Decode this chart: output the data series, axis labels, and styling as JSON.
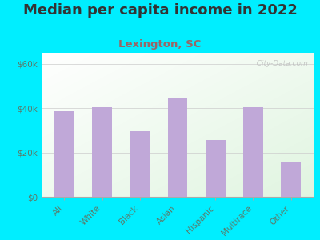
{
  "title": "Median per capita income in 2022",
  "subtitle": "Lexington, SC",
  "categories": [
    "All",
    "White",
    "Black",
    "Asian",
    "Hispanic",
    "Multirace",
    "Other"
  ],
  "values": [
    38500,
    40500,
    29500,
    44500,
    25500,
    40500,
    15500
  ],
  "bar_color": "#c0a8d8",
  "background_outer": "#00eeff",
  "title_color": "#333333",
  "subtitle_color": "#996666",
  "tick_color": "#5a7a6a",
  "ytick_labels": [
    "$0",
    "$20k",
    "$40k",
    "$60k"
  ],
  "ytick_values": [
    0,
    20000,
    40000,
    60000
  ],
  "ylim": [
    0,
    65000
  ],
  "title_fontsize": 13,
  "subtitle_fontsize": 9.5,
  "tick_fontsize": 7.5,
  "watermark": "  City-Data.com",
  "bar_width": 0.52
}
